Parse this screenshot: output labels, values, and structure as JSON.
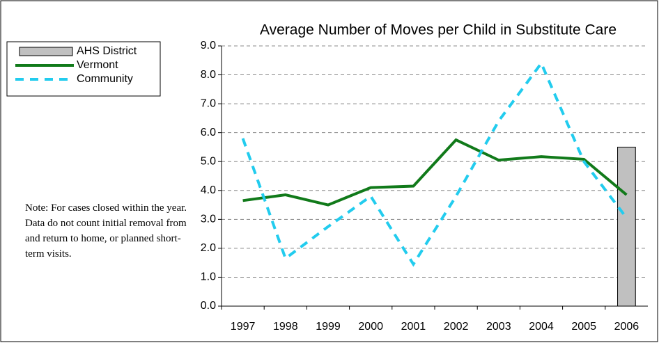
{
  "chart_data": {
    "type": "combo",
    "title": "Average Number of Moves per Child in Substitute Care",
    "annotation": "Note: For cases closed within the year.  Data do not count initial removal from and return to home, or planned short-term visits.",
    "categories": [
      "1997",
      "1998",
      "1999",
      "2000",
      "2001",
      "2002",
      "2003",
      "2004",
      "2005",
      "2006"
    ],
    "series": [
      {
        "name": "AHS District",
        "type": "bar",
        "color": "#c0c0c0",
        "values": [
          null,
          null,
          null,
          null,
          null,
          null,
          null,
          null,
          null,
          5.5
        ]
      },
      {
        "name": "Vermont",
        "type": "line",
        "color": "#117a1a",
        "dash": false,
        "values": [
          3.65,
          3.85,
          3.5,
          4.1,
          4.15,
          5.75,
          5.05,
          5.17,
          5.08,
          3.85
        ]
      },
      {
        "name": "Community",
        "type": "line",
        "color": "#22ccee",
        "dash": true,
        "values": [
          5.8,
          1.65,
          2.75,
          3.8,
          1.45,
          3.8,
          6.4,
          8.4,
          5.0,
          3.05
        ]
      }
    ],
    "ylim": [
      0,
      9
    ],
    "yticks": [
      {
        "value": 0,
        "label": "0.0"
      },
      {
        "value": 1,
        "label": "1.0"
      },
      {
        "value": 2,
        "label": "2.0"
      },
      {
        "value": 3,
        "label": "3.0"
      },
      {
        "value": 4,
        "label": "4.0"
      },
      {
        "value": 5,
        "label": "5.0"
      },
      {
        "value": 6,
        "label": "6.0"
      },
      {
        "value": 7,
        "label": "7.0"
      },
      {
        "value": 8,
        "label": "8.0"
      },
      {
        "value": 9,
        "label": "9.0"
      }
    ],
    "grid": true,
    "legend": "top-left"
  }
}
